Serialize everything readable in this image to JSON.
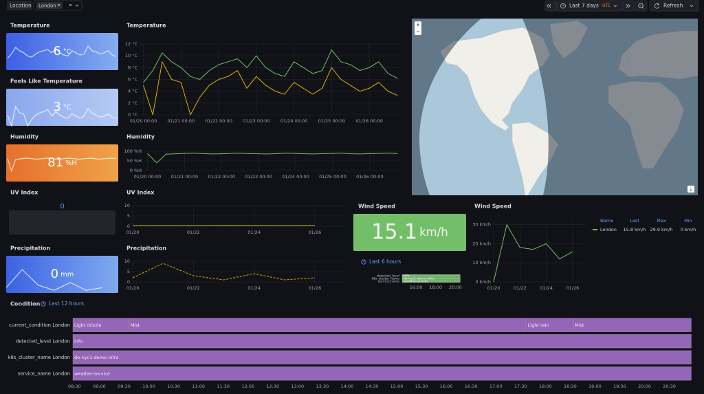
{
  "toolbar": {
    "variable_label": "Location",
    "variable_value": "London",
    "time_range": "Last 7 days",
    "timezone": "UTC",
    "refresh": "Refresh"
  },
  "stats": [
    {
      "title": "Temperature",
      "value": 6,
      "unit": "°C"
    },
    {
      "title": "Feels Like Temperature",
      "value": 3,
      "unit": "°C"
    },
    {
      "title": "Humidity",
      "value": 81,
      "unit": "%H"
    },
    {
      "title": "UV Index",
      "value": 0
    },
    {
      "title": "Precipitation",
      "value": 0,
      "unit": "mm"
    },
    {
      "title": "Wind Speed",
      "value": 15.1,
      "unit": "km/h",
      "time_range": "Last 6 hours"
    }
  ],
  "chart_data": [
    {
      "type": "line",
      "title": "Temperature",
      "x": [
        "01/20 00:00",
        "01/20 06:00",
        "01/20 12:00",
        "01/20 18:00",
        "01/21 00:00",
        "01/21 06:00",
        "01/21 12:00",
        "01/21 18:00",
        "01/22 00:00",
        "01/22 06:00",
        "01/22 12:00",
        "01/22 18:00",
        "01/23 00:00",
        "01/23 06:00",
        "01/23 12:00",
        "01/23 18:00",
        "01/24 00:00",
        "01/24 06:00",
        "01/24 12:00",
        "01/24 18:00",
        "01/25 00:00",
        "01/25 06:00",
        "01/25 12:00",
        "01/25 18:00",
        "01/26 00:00",
        "01/26 06:00",
        "01/26 12:00",
        "01/26 18:00"
      ],
      "xlim": [
        "01/19 22:00",
        "01/26 21:00"
      ],
      "xticks": [
        "01/20 00:00",
        "01/21 00:00",
        "01/22 00:00",
        "01/23 00:00",
        "01/24 00:00",
        "01/25 00:00",
        "01/26 00:00"
      ],
      "ylim": [
        0,
        12
      ],
      "yticks": [
        {
          "value": 0,
          "label": "0 °C"
        },
        {
          "value": 2,
          "label": "2 °C"
        },
        {
          "value": 4,
          "label": "4 °C"
        },
        {
          "value": 6,
          "label": "6 °C"
        },
        {
          "value": 8,
          "label": "8 °C"
        },
        {
          "value": 10,
          "label": "10 °C"
        },
        {
          "value": 12,
          "label": "12 °C"
        }
      ],
      "grid": true,
      "series": [
        {
          "color": "#73bf69",
          "values": [
            5.5,
            7.5,
            10.5,
            9,
            8,
            6.5,
            6,
            7.5,
            8.5,
            9,
            9.5,
            8,
            10,
            8,
            7,
            6.5,
            9,
            8,
            7,
            7.5,
            11,
            9,
            8.5,
            7.5,
            8,
            9,
            7,
            6.2
          ]
        },
        {
          "color": "#e0b400",
          "values": [
            5,
            0,
            9,
            6,
            5.5,
            0,
            3,
            5,
            6,
            6.5,
            7.5,
            4.5,
            6.5,
            5,
            4,
            3.5,
            5.5,
            4.5,
            3.5,
            4.5,
            8,
            6,
            5,
            4,
            4.5,
            5.5,
            4,
            3.3
          ]
        }
      ]
    },
    {
      "type": "line",
      "title": "Humidity",
      "x": [
        "01/20 00:00",
        "01/20 06:00",
        "01/20 12:00",
        "01/20 18:00",
        "01/21 00:00",
        "01/21 06:00",
        "01/21 12:00",
        "01/21 18:00",
        "01/22 00:00",
        "01/22 06:00",
        "01/22 12:00",
        "01/22 18:00",
        "01/23 00:00",
        "01/23 06:00",
        "01/23 12:00",
        "01/23 18:00",
        "01/24 00:00",
        "01/24 06:00",
        "01/24 12:00",
        "01/24 18:00",
        "01/25 00:00",
        "01/25 06:00",
        "01/25 12:00",
        "01/25 18:00",
        "01/26 00:00",
        "01/26 06:00",
        "01/26 12:00",
        "01/26 18:00"
      ],
      "xlim": [
        "01/19 22:00",
        "01/26 21:00"
      ],
      "xticks": [
        "01/20 00:00",
        "01/21 00:00",
        "01/22 00:00",
        "01/23 00:00",
        "01/24 00:00",
        "01/25 00:00",
        "01/26 00:00"
      ],
      "ylim": [
        0,
        100
      ],
      "yticks": [
        {
          "value": 0,
          "label": "0 %H"
        },
        {
          "value": 50,
          "label": "50 %H"
        },
        {
          "value": 100,
          "label": "100 %H"
        }
      ],
      "grid": true,
      "series": [
        {
          "color": "#73bf69",
          "values": [
            88,
            40,
            85,
            87,
            89,
            90,
            88,
            86,
            87,
            89,
            90,
            88,
            87,
            86,
            88,
            90,
            89,
            87,
            86,
            88,
            89,
            90,
            87,
            86,
            88,
            89,
            90,
            88
          ]
        }
      ]
    },
    {
      "type": "line",
      "title": "UV Index",
      "x": [
        "01/20",
        "01/21",
        "01/22",
        "01/23",
        "01/24",
        "01/25",
        "01/26"
      ],
      "xlim": [
        "01/20",
        "01/27"
      ],
      "xticks": [
        "01/20",
        "01/22",
        "01/24",
        "01/26"
      ],
      "ylim": [
        0,
        10
      ],
      "yticks": [
        0,
        5,
        10
      ],
      "grid": true,
      "series": [
        {
          "color": "#c9c23a",
          "values": [
            0.2,
            0.3,
            0.2,
            0.4,
            0.3,
            0.2,
            0.3
          ]
        }
      ]
    },
    {
      "type": "line",
      "title": "Precipitation",
      "x": [
        "01/20",
        "01/21",
        "01/22",
        "01/23",
        "01/24",
        "01/25",
        "01/26"
      ],
      "xlim": [
        "01/20",
        "01/27"
      ],
      "xticks": [
        "01/20",
        "01/22",
        "01/24",
        "01/26"
      ],
      "ylim": [
        0,
        10
      ],
      "yticks": [
        0,
        5,
        10
      ],
      "grid": true,
      "series": [
        {
          "color": "#e0b400",
          "line_style": "dashed",
          "values": [
            2,
            9,
            3,
            1,
            4,
            1,
            2
          ]
        }
      ]
    },
    {
      "type": "line",
      "title": "Wind Speed",
      "x": [
        "01/20",
        "01/21",
        "01/22",
        "01/23",
        "01/24",
        "01/25",
        "01/26"
      ],
      "xlim": [
        "01/20",
        "01/27"
      ],
      "xticks": [
        "01/20",
        "01/22",
        "01/24",
        "01/26"
      ],
      "ylim": [
        0,
        32
      ],
      "yticks": [
        {
          "value": 0,
          "label": "0 km/h"
        },
        {
          "value": 10,
          "label": "10 km/h"
        },
        {
          "value": 20,
          "label": "20 km/h"
        },
        {
          "value": 30,
          "label": "30 km/h"
        }
      ],
      "grid": true,
      "series": [
        {
          "name": "London",
          "color": "#73bf69",
          "values": [
            0,
            29.9,
            18,
            17,
            20,
            12,
            15.8
          ]
        }
      ],
      "legend": {
        "headers": [
          "Name",
          "Last",
          "Max",
          "Min"
        ],
        "rows": [
          [
            "15.8 km/h",
            "29.9 km/h",
            "0 km/h"
          ]
        ]
      }
    },
    {
      "type": "state-timeline",
      "title": "Condition",
      "time_range": "Last 12 hours",
      "color": "#9466b8",
      "xlim": [
        "08:28",
        "20:57"
      ],
      "xticks": [
        "08:30",
        "09:00",
        "09:30",
        "10:00",
        "10:30",
        "11:00",
        "11:30",
        "12:00",
        "12:30",
        "13:00",
        "13:30",
        "14:00",
        "14:30",
        "15:00",
        "15:30",
        "16:00",
        "16:30",
        "17:00",
        "17:30",
        "18:00",
        "18:30",
        "19:00",
        "19:30",
        "20:00",
        "20:30"
      ],
      "rows": [
        {
          "label": "current_condition London",
          "segments": [
            {
              "label": "Light drizzle",
              "start": "08:28",
              "end": "09:36"
            },
            {
              "label": "Mist",
              "start": "09:36",
              "end": "17:37"
            },
            {
              "label": "Light rain",
              "start": "17:37",
              "end": "18:34"
            },
            {
              "label": "Mist",
              "start": "18:34",
              "end": "20:57"
            }
          ]
        },
        {
          "label": "detected_level London",
          "segments": [
            {
              "label": "info",
              "start": "08:28",
              "end": "20:57"
            }
          ]
        },
        {
          "label": "k8s_cluster_name London",
          "segments": [
            {
              "label": "do-nyc1-demo-infra",
              "start": "08:28",
              "end": "20:57"
            }
          ]
        },
        {
          "label": "service_name London",
          "segments": [
            {
              "label": "weather-service",
              "start": "08:28",
              "end": "20:57"
            }
          ]
        }
      ]
    },
    {
      "type": "state-timeline",
      "color": "#73bf69",
      "xlim": [
        "14:36",
        "20:32"
      ],
      "xticks": [
        "16:00",
        "18:00",
        "20:00"
      ],
      "rows": [
        {
          "label": "detected_level",
          "segments": [
            {
              "label": "info",
              "start": "14:36",
              "end": "20:32"
            }
          ]
        },
        {
          "label": "k8s_cluster_name",
          "segments": [
            {
              "label": "do-nyc1-demo-infra",
              "start": "14:36",
              "end": "20:32"
            }
          ]
        },
        {
          "label": "service_name",
          "segments": [
            {
              "label": "weather-service",
              "start": "14:36",
              "end": "20:32"
            }
          ]
        }
      ]
    }
  ]
}
